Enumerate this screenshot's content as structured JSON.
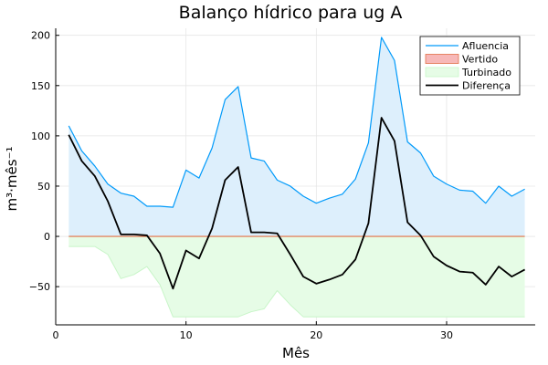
{
  "chart_data": {
    "type": "area",
    "title": "Balanço hídrico para ug A",
    "xlabel": "Mês",
    "ylabel": "m³·mês⁻¹",
    "xlim": [
      0,
      36.8
    ],
    "ylim": [
      -88,
      207
    ],
    "xticks": [
      0,
      10,
      20,
      30
    ],
    "yticks": [
      -50,
      0,
      50,
      100,
      150,
      200
    ],
    "grid": true,
    "legend_position": "top-right",
    "x": [
      1,
      2,
      3,
      4,
      5,
      6,
      7,
      8,
      9,
      10,
      11,
      12,
      13,
      14,
      15,
      16,
      17,
      18,
      19,
      20,
      21,
      22,
      23,
      24,
      25,
      26,
      27,
      28,
      29,
      30,
      31,
      32,
      33,
      34,
      35,
      36
    ],
    "series": [
      {
        "name": "Afluencia",
        "color": "#009AFA",
        "fill": "#DDEFFC",
        "values": [
          110,
          85,
          70,
          52,
          43,
          40,
          30,
          30,
          29,
          66,
          58,
          88,
          136,
          149,
          78,
          75,
          56,
          50,
          40,
          33,
          38,
          42,
          57,
          93,
          198,
          175,
          94,
          83,
          60,
          52,
          46,
          45,
          33,
          50,
          40,
          47
        ]
      },
      {
        "name": "Vertido",
        "color": "#E26F46",
        "fill": "#F7B8B8",
        "values": [
          0,
          0,
          0,
          0,
          0,
          0,
          0,
          0,
          0,
          0,
          0,
          0,
          0,
          0,
          0,
          0,
          0,
          0,
          0,
          0,
          0,
          0,
          0,
          0,
          0,
          0,
          0,
          0,
          0,
          0,
          0,
          0,
          0,
          0,
          0,
          0
        ]
      },
      {
        "name": "Turbinado",
        "color": "#C8F5C8",
        "fill": "#E6FCE6",
        "values": [
          -10,
          -10,
          -10,
          -18,
          -42,
          -38,
          -30,
          -48,
          -80,
          -80,
          -80,
          -80,
          -80,
          -80,
          -75,
          -72,
          -54,
          -68,
          -80,
          -80,
          -80,
          -80,
          -80,
          -80,
          -80,
          -80,
          -80,
          -80,
          -80,
          -80,
          -80,
          -80,
          -80,
          -80,
          -80,
          -80
        ]
      },
      {
        "name": "Diferença",
        "color": "#000000",
        "values": [
          101,
          75,
          60,
          35,
          2,
          2,
          1,
          -17,
          -52,
          -14,
          -22,
          8,
          56,
          69,
          4,
          4,
          3,
          -18,
          -40,
          -47,
          -43,
          -38,
          -23,
          13,
          118,
          95,
          14,
          1,
          -20,
          -29,
          -35,
          -36,
          -48,
          -30,
          -40,
          -33
        ]
      }
    ]
  }
}
